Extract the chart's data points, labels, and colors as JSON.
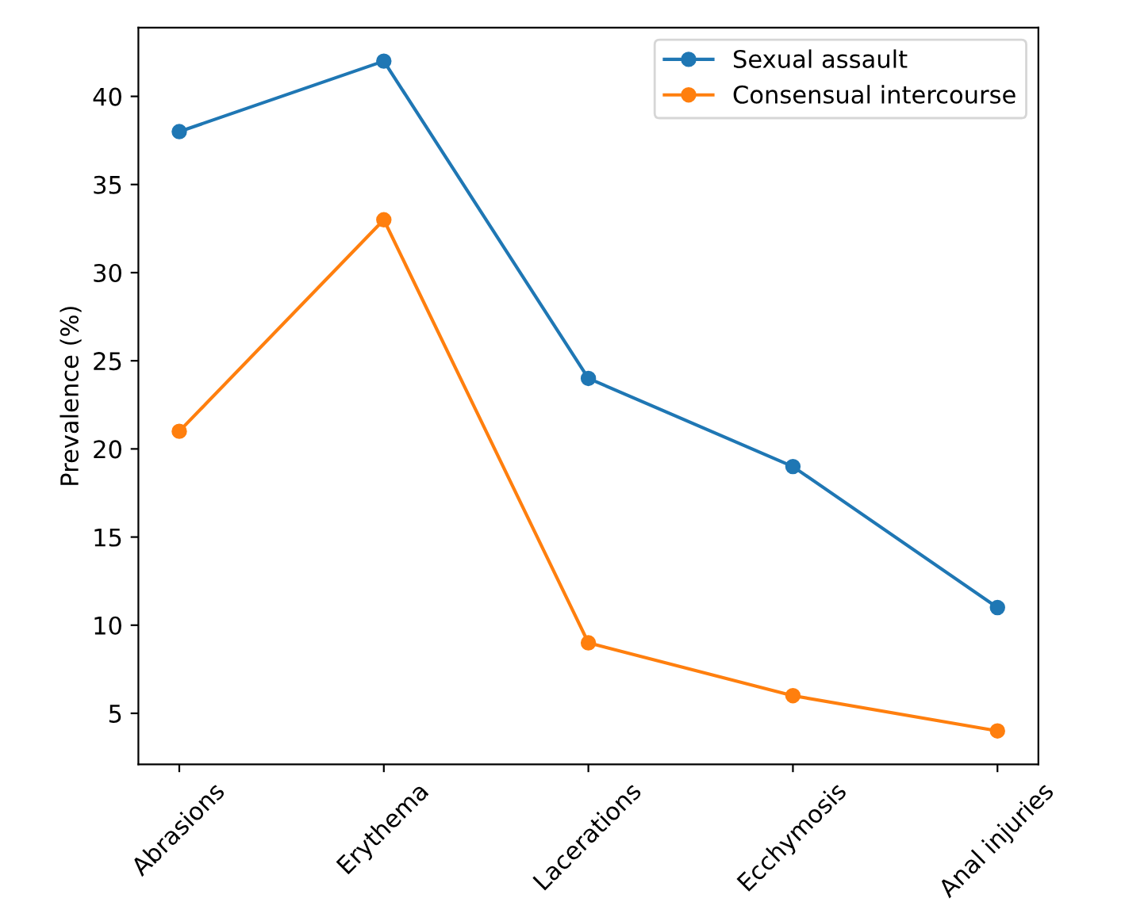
{
  "chart_data": {
    "type": "line",
    "ylabel": "Prevalence (%)",
    "categories": [
      "Abrasions",
      "Erythema",
      "Lacerations",
      "Ecchymosis",
      "Anal injuries"
    ],
    "series": [
      {
        "name": "Sexual assault",
        "color": "#1f77b4",
        "values": [
          38,
          42,
          24,
          19,
          11
        ]
      },
      {
        "name": "Consensual intercourse",
        "color": "#ff7f0e",
        "values": [
          21,
          33,
          9,
          6,
          4
        ]
      }
    ],
    "ylim": [
      2.1,
      43.9
    ],
    "yticks": [
      5,
      10,
      15,
      20,
      25,
      30,
      35,
      40
    ],
    "marker": "circle",
    "line_style": "solid",
    "legend": "top right",
    "grid": false
  }
}
